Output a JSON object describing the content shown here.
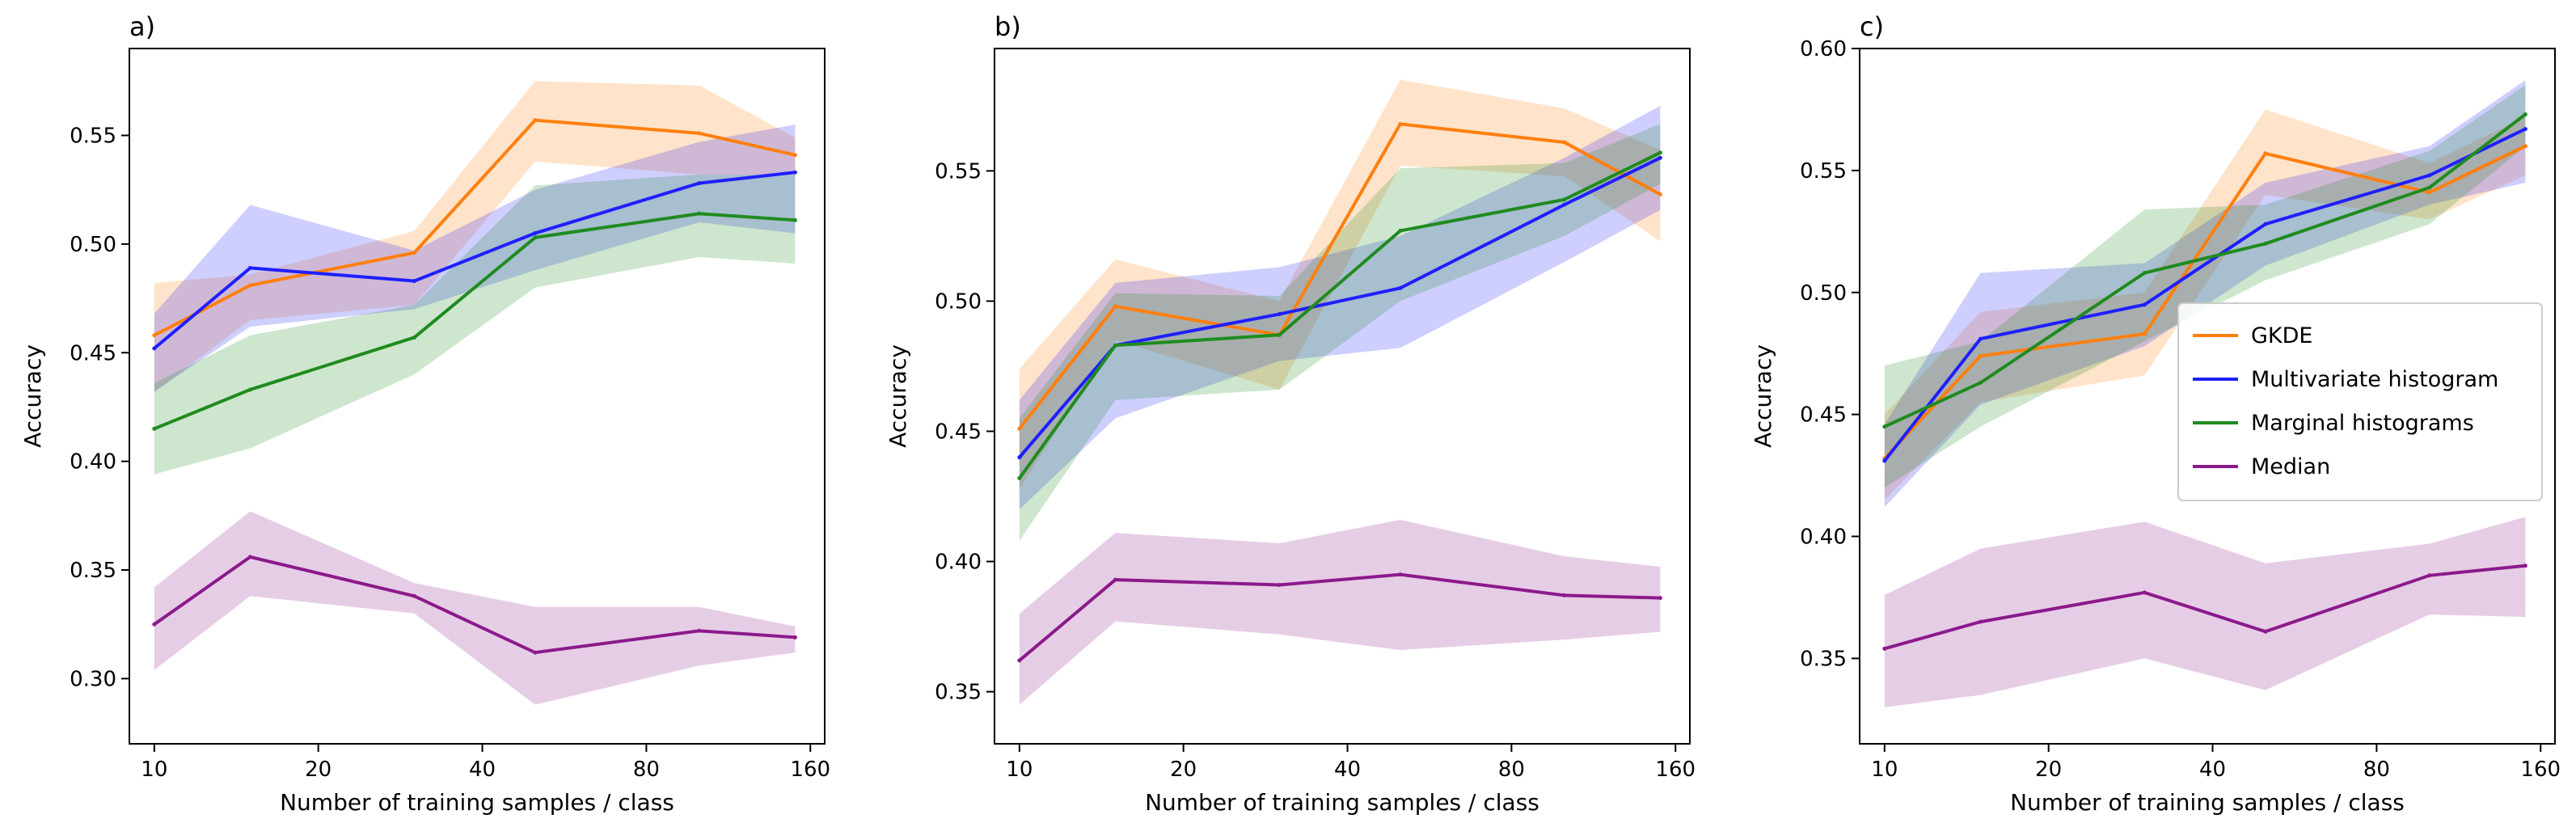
{
  "chart_data": [
    {
      "type": "line",
      "title": "a)",
      "xlabel": "Number of training samples / class",
      "ylabel": "Accuracy",
      "x_scale": "log2",
      "xlim": [
        9,
        170
      ],
      "ylim": [
        0.27,
        0.59
      ],
      "x_ticks": [
        10,
        20,
        40,
        80,
        160
      ],
      "y_ticks": [
        0.3,
        0.35,
        0.4,
        0.45,
        0.5,
        0.55
      ],
      "x": [
        10,
        15,
        30,
        50,
        100,
        150
      ],
      "series": [
        {
          "name": "GKDE",
          "color": "#ff7f0e",
          "values": [
            0.458,
            0.481,
            0.496,
            0.557,
            0.551,
            0.541
          ],
          "lower": [
            0.432,
            0.465,
            0.472,
            0.538,
            0.532,
            0.532
          ],
          "upper": [
            0.482,
            0.486,
            0.506,
            0.575,
            0.573,
            0.549
          ]
        },
        {
          "name": "Multivariate histogram",
          "color": "#1f1fff",
          "values": [
            0.452,
            0.489,
            0.483,
            0.505,
            0.528,
            0.533
          ],
          "lower": [
            0.432,
            0.462,
            0.47,
            0.488,
            0.51,
            0.505
          ],
          "upper": [
            0.468,
            0.518,
            0.497,
            0.525,
            0.547,
            0.555
          ]
        },
        {
          "name": "Marginal histograms",
          "color": "#1f8b1f",
          "values": [
            0.415,
            0.433,
            0.457,
            0.503,
            0.514,
            0.511
          ],
          "lower": [
            0.394,
            0.406,
            0.44,
            0.48,
            0.494,
            0.491
          ],
          "upper": [
            0.436,
            0.458,
            0.472,
            0.527,
            0.532,
            0.532
          ]
        },
        {
          "name": "Median",
          "color": "#8b1a8b",
          "values": [
            0.325,
            0.356,
            0.338,
            0.312,
            0.322,
            0.319
          ],
          "lower": [
            0.304,
            0.338,
            0.33,
            0.288,
            0.306,
            0.312
          ],
          "upper": [
            0.342,
            0.377,
            0.344,
            0.333,
            0.333,
            0.324
          ]
        }
      ]
    },
    {
      "type": "line",
      "title": "b)",
      "xlabel": "Number of training samples / class",
      "ylabel": "Accuracy",
      "x_scale": "log2",
      "xlim": [
        9,
        170
      ],
      "ylim": [
        0.33,
        0.597
      ],
      "x_ticks": [
        10,
        20,
        40,
        80,
        160
      ],
      "y_ticks": [
        0.35,
        0.4,
        0.45,
        0.5,
        0.55
      ],
      "x": [
        10,
        15,
        30,
        50,
        100,
        150
      ],
      "series": [
        {
          "name": "GKDE",
          "color": "#ff7f0e",
          "values": [
            0.451,
            0.498,
            0.487,
            0.568,
            0.561,
            0.541
          ],
          "lower": [
            0.428,
            0.485,
            0.466,
            0.552,
            0.548,
            0.523
          ],
          "upper": [
            0.474,
            0.516,
            0.5,
            0.585,
            0.574,
            0.558
          ]
        },
        {
          "name": "Multivariate histogram",
          "color": "#1f1fff",
          "values": [
            0.44,
            0.483,
            0.495,
            0.505,
            0.537,
            0.555
          ],
          "lower": [
            0.42,
            0.455,
            0.477,
            0.482,
            0.515,
            0.535
          ],
          "upper": [
            0.462,
            0.507,
            0.513,
            0.525,
            0.555,
            0.575
          ]
        },
        {
          "name": "Marginal histograms",
          "color": "#1f8b1f",
          "values": [
            0.432,
            0.483,
            0.487,
            0.527,
            0.539,
            0.557
          ],
          "lower": [
            0.408,
            0.462,
            0.466,
            0.5,
            0.525,
            0.545
          ],
          "upper": [
            0.455,
            0.503,
            0.502,
            0.551,
            0.553,
            0.568
          ]
        },
        {
          "name": "Median",
          "color": "#8b1a8b",
          "values": [
            0.362,
            0.393,
            0.391,
            0.395,
            0.387,
            0.386
          ],
          "lower": [
            0.345,
            0.377,
            0.372,
            0.366,
            0.37,
            0.373
          ],
          "upper": [
            0.38,
            0.411,
            0.407,
            0.416,
            0.402,
            0.398
          ]
        }
      ]
    },
    {
      "type": "line",
      "title": "c)",
      "xlabel": "Number of training samples / class",
      "ylabel": "Accuracy",
      "x_scale": "log2",
      "xlim": [
        9,
        170
      ],
      "ylim": [
        0.315,
        0.6
      ],
      "x_ticks": [
        10,
        20,
        40,
        80,
        160
      ],
      "y_ticks": [
        0.35,
        0.4,
        0.45,
        0.5,
        0.55,
        0.6
      ],
      "x": [
        10,
        15,
        30,
        50,
        100,
        150
      ],
      "legend": "center-right",
      "series": [
        {
          "name": "GKDE",
          "color": "#ff7f0e",
          "values": [
            0.432,
            0.474,
            0.483,
            0.557,
            0.541,
            0.56
          ],
          "lower": [
            0.415,
            0.455,
            0.466,
            0.54,
            0.53,
            0.548
          ],
          "upper": [
            0.45,
            0.492,
            0.5,
            0.575,
            0.553,
            0.572
          ]
        },
        {
          "name": "Multivariate histogram",
          "color": "#1f1fff",
          "values": [
            0.431,
            0.481,
            0.495,
            0.528,
            0.548,
            0.567
          ],
          "lower": [
            0.412,
            0.454,
            0.478,
            0.511,
            0.536,
            0.545
          ],
          "upper": [
            0.446,
            0.508,
            0.512,
            0.545,
            0.56,
            0.587
          ]
        },
        {
          "name": "Marginal histograms",
          "color": "#1f8b1f",
          "values": [
            0.445,
            0.463,
            0.508,
            0.52,
            0.543,
            0.573
          ],
          "lower": [
            0.42,
            0.445,
            0.48,
            0.505,
            0.528,
            0.56
          ],
          "upper": [
            0.47,
            0.48,
            0.534,
            0.536,
            0.558,
            0.585
          ]
        },
        {
          "name": "Median",
          "color": "#8b1a8b",
          "values": [
            0.354,
            0.365,
            0.377,
            0.361,
            0.384,
            0.388
          ],
          "lower": [
            0.33,
            0.335,
            0.35,
            0.337,
            0.368,
            0.367
          ],
          "upper": [
            0.376,
            0.395,
            0.406,
            0.389,
            0.397,
            0.408
          ]
        }
      ]
    }
  ]
}
